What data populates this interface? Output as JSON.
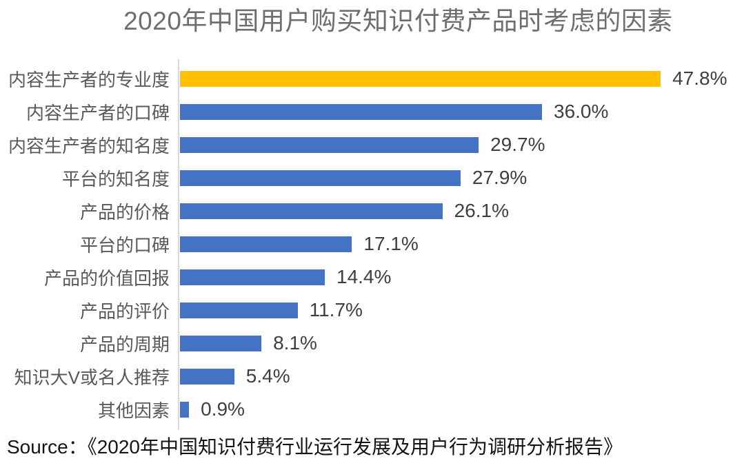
{
  "title": "2020年中国用户购买知识付费产品时考虑的因素",
  "source": {
    "label": "Source：",
    "text": "《2020年中国知识付费行业运行发展及用户行为调研分析报告》"
  },
  "colors": {
    "bar_default": "#4472C4",
    "bar_highlight": "#FFC000",
    "axis_line": "#D9D9D9",
    "title_text": "#6E6E6E",
    "category_text": "#595959",
    "value_text": "#3F3F3F"
  },
  "chart_data": {
    "type": "bar",
    "orientation": "horizontal",
    "title": "2020年中国用户购买知识付费产品时考虑的因素",
    "categories": [
      "内容生产者的专业度",
      "内容生产者的口碑",
      "内容生产者的知名度",
      "平台的知名度",
      "产品的价格",
      "平台的口碑",
      "产品的价值回报",
      "产品的评价",
      "产品的周期",
      "知识大V或名人推荐",
      "其他因素"
    ],
    "values": [
      47.8,
      36.0,
      29.7,
      27.9,
      26.1,
      17.1,
      14.4,
      11.7,
      8.1,
      5.4,
      0.9
    ],
    "value_labels": [
      "47.8%",
      "36.0%",
      "29.7%",
      "27.9%",
      "26.1%",
      "17.1%",
      "14.4%",
      "11.7%",
      "8.1%",
      "5.4%",
      "0.9%"
    ],
    "xlabel": "",
    "ylabel": "",
    "xlim": [
      0,
      48
    ],
    "grid": false,
    "legend": false,
    "highlight_index": 0,
    "bar_color_default": "#4472C4",
    "bar_color_highlight": "#FFC000",
    "source": "Source：《2020年中国知识付费行业运行发展及用户行为调研分析报告》"
  }
}
